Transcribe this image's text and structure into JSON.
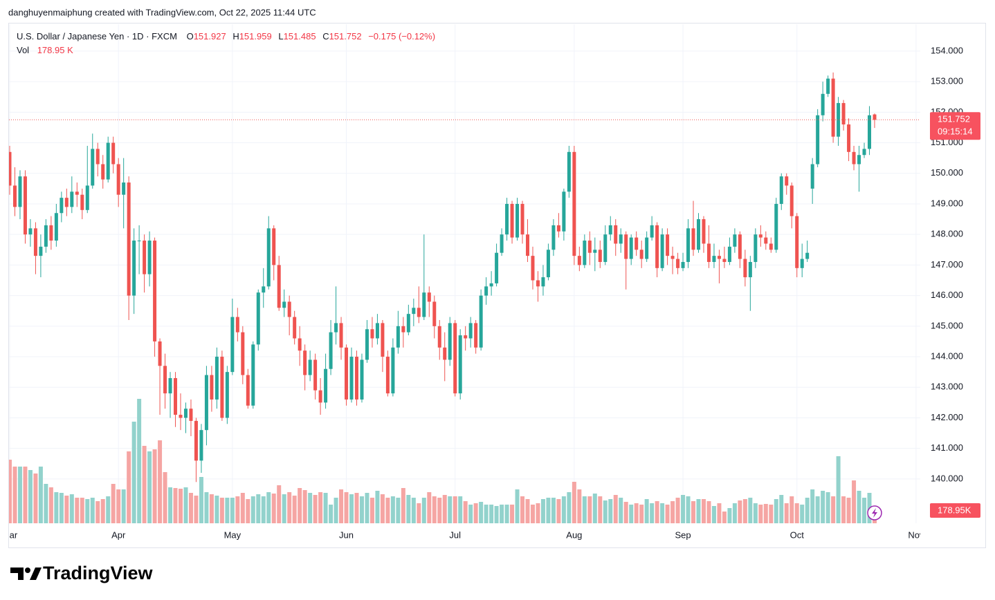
{
  "attribution": "danghuyenmaiphung created with TradingView.com, Oct 22, 2025 11:44 UTC",
  "logo": "TradingView",
  "chart_data": {
    "type": "candlestick",
    "title": "U.S. Dollar / Japanese Yen · 1D · FXCM",
    "ohlc_labels": [
      "O",
      "H",
      "L",
      "C"
    ],
    "change_label": "−0.175 (−0.12%)",
    "volume_title": "Vol",
    "volume_header_label": "178.95 K",
    "volume_axis_label": "178.95K",
    "countdown": "09:15:14",
    "up_color": "#26a69a",
    "down_color": "#ef5350",
    "volume_up_color": "#92d2cc",
    "volume_down_color": "#f5a5a3",
    "grid": true,
    "ylim": [
      138.55,
      154.88
    ],
    "yticks": [
      {
        "value": 140,
        "label": "140.000"
      },
      {
        "value": 141,
        "label": "141.000"
      },
      {
        "value": 142,
        "label": "142.000"
      },
      {
        "value": 143,
        "label": "143.000"
      },
      {
        "value": 144,
        "label": "144.000"
      },
      {
        "value": 145,
        "label": "145.000"
      },
      {
        "value": 146,
        "label": "146.000"
      },
      {
        "value": 147,
        "label": "147.000"
      },
      {
        "value": 148,
        "label": "148.000"
      },
      {
        "value": 149,
        "label": "149.000"
      },
      {
        "value": 150,
        "label": "150.000"
      },
      {
        "value": 151,
        "label": "151.000"
      },
      {
        "value": 152,
        "label": "152.000"
      },
      {
        "value": 153,
        "label": "153.000"
      },
      {
        "value": 154,
        "label": "154.000"
      }
    ],
    "categories": [
      "Mar",
      null,
      null,
      null,
      null,
      null,
      null,
      null,
      null,
      null,
      null,
      null,
      null,
      null,
      null,
      null,
      null,
      null,
      null,
      null,
      null,
      "Apr",
      null,
      null,
      null,
      null,
      null,
      null,
      null,
      null,
      null,
      null,
      null,
      null,
      null,
      null,
      null,
      null,
      null,
      null,
      null,
      null,
      null,
      "May",
      null,
      null,
      null,
      null,
      null,
      null,
      null,
      null,
      null,
      null,
      null,
      null,
      null,
      null,
      null,
      null,
      null,
      null,
      null,
      null,
      null,
      "Jun",
      null,
      null,
      null,
      null,
      null,
      null,
      null,
      null,
      null,
      null,
      null,
      null,
      null,
      null,
      null,
      null,
      null,
      null,
      null,
      null,
      "Jul",
      null,
      null,
      null,
      null,
      null,
      null,
      null,
      null,
      null,
      null,
      null,
      null,
      null,
      null,
      null,
      null,
      null,
      null,
      null,
      null,
      null,
      null,
      "Aug",
      null,
      null,
      null,
      null,
      null,
      null,
      null,
      null,
      null,
      null,
      null,
      null,
      null,
      null,
      null,
      null,
      null,
      null,
      null,
      null,
      "Sep",
      null,
      null,
      null,
      null,
      null,
      null,
      null,
      null,
      null,
      null,
      null,
      null,
      null,
      null,
      null,
      null,
      null,
      null,
      null,
      null,
      null,
      "Oct",
      null,
      null,
      null,
      null,
      null,
      null,
      null,
      null,
      null,
      null,
      null,
      null,
      null,
      null,
      null,
      null,
      null,
      null,
      null,
      null,
      null,
      null,
      "Nov"
    ],
    "open": [
      150.7,
      149.6,
      148.9,
      149.9,
      148.0,
      148.2,
      147.3,
      147.6,
      148.3,
      147.8,
      148.7,
      149.2,
      148.9,
      149.4,
      149.3,
      148.8,
      149.6,
      150.8,
      150.3,
      149.8,
      151.0,
      150.3,
      149.3,
      149.7,
      146.0,
      147.8,
      147.8,
      146.7,
      147.8,
      144.5,
      143.7,
      142.8,
      143.3,
      142.1,
      142.0,
      142.3,
      141.9,
      140.6,
      141.6,
      143.4,
      142.6,
      144.0,
      142.0,
      143.5,
      145.3,
      144.8,
      143.4,
      142.4,
      144.4,
      146.1,
      146.3,
      148.2,
      147.0,
      145.6,
      145.8,
      145.3,
      144.6,
      144.2,
      143.4,
      143.9,
      142.9,
      142.5,
      143.6,
      144.8,
      145.1,
      144.3,
      142.6,
      144.0,
      142.6,
      143.9,
      144.9,
      144.6,
      145.1,
      144.0,
      142.8,
      144.3,
      145.0,
      144.8,
      145.4,
      145.6,
      145.3,
      146.1,
      145.8,
      145.0,
      144.3,
      143.9,
      145.1,
      142.8,
      144.7,
      144.6,
      145.1,
      144.3,
      146.0,
      146.3,
      146.4,
      147.4,
      148.0,
      149.0,
      147.9,
      149.0,
      148.0,
      147.3,
      146.5,
      146.3,
      146.6,
      147.5,
      148.3,
      148.1,
      149.4,
      150.7,
      147.3,
      147.0,
      147.8,
      147.4,
      147.5,
      147.1,
      148.0,
      148.3,
      147.7,
      148.0,
      147.2,
      147.9,
      147.5,
      147.2,
      147.9,
      148.3,
      146.9,
      148.0,
      147.3,
      147.2,
      146.9,
      147.1,
      148.2,
      147.5,
      148.5,
      147.7,
      147.1,
      147.3,
      147.2,
      147.1,
      147.6,
      148.0,
      147.2,
      146.6,
      147.1,
      148.0,
      147.9,
      147.7,
      147.5,
      149.0,
      149.9,
      149.6,
      148.6,
      146.9,
      147.2,
      149.5,
      150.3,
      151.9,
      152.6,
      153.1,
      151.2,
      152.3,
      151.6,
      150.7,
      150.3,
      150.6,
      150.8,
      151.927,
      null,
      null,
      null,
      null,
      null,
      null,
      null,
      null
    ],
    "high": [
      150.9,
      150.2,
      150.1,
      150.1,
      148.5,
      148.4,
      148.0,
      148.5,
      148.6,
      149.0,
      149.4,
      149.5,
      149.9,
      149.7,
      149.5,
      150.9,
      151.3,
      151.0,
      150.6,
      151.2,
      151.2,
      150.5,
      150.5,
      149.9,
      148.2,
      148.3,
      148.0,
      148.1,
      147.9,
      144.6,
      144.1,
      143.5,
      143.5,
      142.8,
      142.5,
      142.6,
      142.0,
      141.8,
      143.7,
      143.7,
      144.3,
      144.2,
      143.7,
      145.9,
      145.6,
      145.0,
      143.6,
      144.5,
      146.2,
      146.9,
      148.6,
      148.3,
      147.3,
      146.2,
      146.0,
      145.5,
      145.0,
      144.4,
      144.2,
      144.1,
      143.3,
      144.1,
      145.2,
      146.3,
      145.3,
      144.4,
      144.3,
      144.2,
      144.1,
      145.2,
      145.3,
      145.4,
      145.2,
      144.2,
      144.6,
      145.5,
      145.3,
      145.7,
      145.9,
      146.3,
      148.0,
      146.3,
      146.0,
      145.2,
      144.8,
      145.3,
      145.2,
      144.9,
      145.0,
      145.3,
      145.2,
      146.2,
      146.6,
      146.8,
      147.7,
      148.2,
      149.2,
      149.1,
      149.2,
      149.1,
      148.5,
      147.6,
      146.8,
      147.0,
      147.7,
      148.5,
      148.7,
      149.5,
      150.9,
      150.9,
      147.6,
      148.0,
      148.1,
      147.9,
      147.8,
      148.3,
      148.6,
      148.5,
      148.2,
      148.1,
      148.0,
      148.1,
      147.8,
      148.1,
      148.6,
      148.4,
      148.2,
      148.2,
      147.6,
      147.4,
      147.4,
      148.5,
      149.1,
      148.7,
      148.6,
      148.3,
      147.7,
      147.5,
      147.6,
      147.9,
      148.2,
      148.1,
      147.5,
      147.3,
      148.2,
      148.3,
      148.1,
      147.9,
      149.2,
      150.0,
      150.0,
      149.7,
      148.7,
      147.7,
      147.8,
      150.5,
      152.1,
      153.0,
      153.2,
      153.3,
      152.5,
      152.4,
      151.8,
      150.9,
      150.9,
      151.0,
      152.2,
      151.959,
      null,
      null,
      null,
      null,
      null,
      null,
      null,
      null
    ],
    "low": [
      149.3,
      148.6,
      148.5,
      147.7,
      147.6,
      146.7,
      146.6,
      147.4,
      147.5,
      147.6,
      148.4,
      148.6,
      148.7,
      148.9,
      148.5,
      148.7,
      149.5,
      149.9,
      149.5,
      149.7,
      150.0,
      148.9,
      148.2,
      145.2,
      145.4,
      146.7,
      146.1,
      146.3,
      144.0,
      142.1,
      142.3,
      142.0,
      141.7,
      141.6,
      141.5,
      141.4,
      139.9,
      140.2,
      141.1,
      142.2,
      142.3,
      141.9,
      141.8,
      143.4,
      144.5,
      143.1,
      142.3,
      142.3,
      144.2,
      145.6,
      146.2,
      146.5,
      145.5,
      145.3,
      144.7,
      144.4,
      143.7,
      142.9,
      143.2,
      142.6,
      142.1,
      142.3,
      143.4,
      144.4,
      143.9,
      142.4,
      142.5,
      142.4,
      142.5,
      143.8,
      144.3,
      144.4,
      143.5,
      142.7,
      142.7,
      144.1,
      144.3,
      144.7,
      145.0,
      145.1,
      145.2,
      145.3,
      144.6,
      143.9,
      143.2,
      143.7,
      142.7,
      142.6,
      144.2,
      144.3,
      144.1,
      144.2,
      145.7,
      146.0,
      146.3,
      147.3,
      147.8,
      147.7,
      147.8,
      147.7,
      147.1,
      146.2,
      145.8,
      146.0,
      146.5,
      147.3,
      147.9,
      147.8,
      149.2,
      147.0,
      146.8,
      146.9,
      147.0,
      146.8,
      146.9,
      147.0,
      147.8,
      147.3,
      147.4,
      146.2,
      147.0,
      147.3,
      146.9,
      147.1,
      147.8,
      146.6,
      146.8,
      147.0,
      146.7,
      146.7,
      146.8,
      146.9,
      147.3,
      147.4,
      147.4,
      146.9,
      146.9,
      146.4,
      146.9,
      147.0,
      147.4,
      146.9,
      146.3,
      145.5,
      146.9,
      147.6,
      147.5,
      147.4,
      147.4,
      148.8,
      149.3,
      148.2,
      146.6,
      146.6,
      147.1,
      149.0,
      150.2,
      151.7,
      152.5,
      151.0,
      150.9,
      151.4,
      150.4,
      150.1,
      149.4,
      150.5,
      150.6,
      151.485,
      null,
      null,
      null,
      null,
      null,
      null,
      null,
      null
    ],
    "close": [
      149.6,
      148.9,
      149.9,
      148.0,
      148.2,
      147.3,
      147.6,
      148.3,
      147.8,
      148.7,
      149.2,
      148.9,
      149.4,
      149.3,
      148.8,
      149.6,
      150.8,
      150.3,
      149.8,
      151.0,
      150.3,
      149.3,
      149.7,
      146.0,
      147.8,
      147.8,
      146.7,
      147.8,
      144.5,
      143.7,
      142.8,
      143.3,
      142.1,
      142.0,
      142.3,
      141.9,
      140.6,
      141.6,
      143.4,
      142.6,
      144.0,
      142.0,
      143.5,
      145.3,
      144.8,
      143.4,
      142.4,
      144.4,
      146.1,
      146.3,
      148.2,
      147.0,
      145.6,
      145.8,
      145.3,
      144.6,
      144.2,
      143.4,
      143.9,
      142.9,
      142.5,
      143.6,
      144.8,
      145.1,
      144.3,
      142.6,
      144.0,
      142.6,
      143.9,
      144.9,
      144.6,
      145.1,
      144.0,
      142.8,
      144.3,
      145.0,
      144.8,
      145.4,
      145.6,
      145.3,
      146.1,
      145.8,
      145.0,
      144.3,
      143.9,
      145.1,
      142.8,
      144.7,
      144.6,
      145.1,
      144.3,
      146.0,
      146.3,
      146.4,
      147.4,
      148.0,
      149.0,
      147.9,
      149.0,
      148.0,
      147.3,
      146.5,
      146.3,
      146.6,
      147.5,
      148.3,
      148.1,
      149.4,
      150.7,
      147.3,
      147.0,
      147.8,
      147.4,
      147.5,
      147.1,
      148.0,
      148.3,
      147.7,
      148.0,
      147.2,
      147.9,
      147.5,
      147.2,
      147.9,
      148.3,
      146.9,
      148.0,
      147.3,
      147.2,
      146.9,
      147.1,
      148.2,
      147.5,
      148.5,
      147.7,
      147.1,
      147.3,
      147.2,
      147.1,
      147.6,
      148.0,
      147.2,
      146.6,
      147.1,
      148.0,
      147.9,
      147.7,
      147.5,
      149.0,
      149.9,
      149.6,
      148.6,
      146.9,
      147.2,
      147.4,
      150.3,
      151.9,
      152.6,
      153.1,
      151.2,
      152.3,
      151.6,
      150.7,
      150.3,
      150.6,
      150.8,
      151.9,
      151.752,
      null,
      null,
      null,
      null,
      null,
      null,
      null,
      null
    ],
    "volume": [
      920,
      820,
      820,
      820,
      770,
      720,
      820,
      570,
      520,
      450,
      440,
      400,
      420,
      370,
      370,
      350,
      370,
      320,
      350,
      390,
      570,
      490,
      490,
      1040,
      1470,
      1800,
      1120,
      1040,
      1070,
      1200,
      740,
      520,
      510,
      500,
      520,
      440,
      400,
      670,
      450,
      420,
      400,
      370,
      370,
      370,
      390,
      440,
      350,
      390,
      420,
      390,
      450,
      430,
      550,
      420,
      450,
      400,
      510,
      480,
      440,
      410,
      450,
      440,
      270,
      370,
      490,
      450,
      420,
      440,
      390,
      440,
      370,
      470,
      420,
      370,
      390,
      370,
      510,
      410,
      370,
      290,
      370,
      450,
      390,
      370,
      410,
      390,
      390,
      390,
      320,
      270,
      290,
      310,
      270,
      270,
      250,
      270,
      270,
      270,
      490,
      390,
      350,
      270,
      290,
      350,
      370,
      370,
      350,
      390,
      450,
      600,
      490,
      390,
      390,
      430,
      390,
      330,
      350,
      410,
      370,
      310,
      270,
      290,
      270,
      350,
      290,
      320,
      290,
      270,
      320,
      370,
      410,
      390,
      320,
      350,
      350,
      320,
      250,
      290,
      170,
      220,
      290,
      330,
      350,
      370,
      290,
      270,
      280,
      270,
      350,
      410,
      290,
      390,
      290,
      270,
      370,
      490,
      390,
      470,
      450,
      390,
      970,
      390,
      370,
      620,
      470,
      370,
      440,
      178.95,
      null,
      null,
      null,
      null,
      null,
      null,
      null,
      null
    ]
  }
}
